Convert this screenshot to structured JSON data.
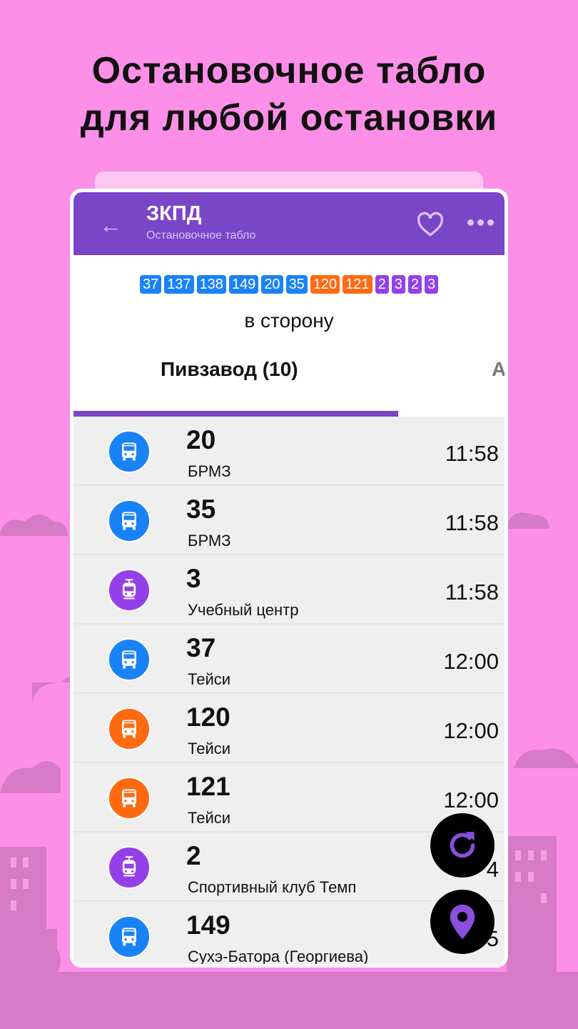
{
  "promo": {
    "line1": "Остановочное табло",
    "line2": "для любой остановки"
  },
  "header": {
    "title": "ЗКПД",
    "subtitle": "Остановочное табло",
    "back_icon": "arrow-left-icon",
    "favorite_icon": "heart-outline-icon",
    "more_icon": "more-horizontal-icon"
  },
  "colors": {
    "primary": "#7b45c8",
    "bus": "#1a82f7",
    "marshrutka": "#ff6a10",
    "tram": "#9340ea",
    "background": "#fd8fe8"
  },
  "route_chips": [
    {
      "label": "37",
      "type": "bus"
    },
    {
      "label": "137",
      "type": "bus"
    },
    {
      "label": "138",
      "type": "bus"
    },
    {
      "label": "149",
      "type": "bus"
    },
    {
      "label": "20",
      "type": "bus"
    },
    {
      "label": "35",
      "type": "bus"
    },
    {
      "label": "120",
      "type": "marshrutka"
    },
    {
      "label": "121",
      "type": "marshrutka"
    },
    {
      "label": "2",
      "type": "tram"
    },
    {
      "label": "3",
      "type": "tram"
    },
    {
      "label": "2",
      "type": "tram"
    },
    {
      "label": "3",
      "type": "tram"
    }
  ],
  "direction_label": "в сторону",
  "tabs": [
    {
      "label": "Пивзавод (10)",
      "active": true
    },
    {
      "label": "А",
      "active": false
    }
  ],
  "arrivals": [
    {
      "route": "20",
      "destination": "БРМЗ",
      "time": "11:58",
      "type": "bus"
    },
    {
      "route": "35",
      "destination": "БРМЗ",
      "time": "11:58",
      "type": "bus"
    },
    {
      "route": "3",
      "destination": "Учебный центр",
      "time": "11:58",
      "type": "tram"
    },
    {
      "route": "37",
      "destination": "Тейси",
      "time": "12:00",
      "type": "bus"
    },
    {
      "route": "120",
      "destination": "Тейси",
      "time": "12:00",
      "type": "marshrutka"
    },
    {
      "route": "121",
      "destination": "Тейси",
      "time": "12:00",
      "type": "marshrutka"
    },
    {
      "route": "2",
      "destination": "Спортивный клуб Темп",
      "time": "4",
      "type": "tram"
    },
    {
      "route": "149",
      "destination": "Сухэ-Батора (Георгиева)",
      "time": "5",
      "type": "bus"
    }
  ],
  "fabs": {
    "refresh_icon": "refresh-icon",
    "location_icon": "map-pin-icon"
  }
}
